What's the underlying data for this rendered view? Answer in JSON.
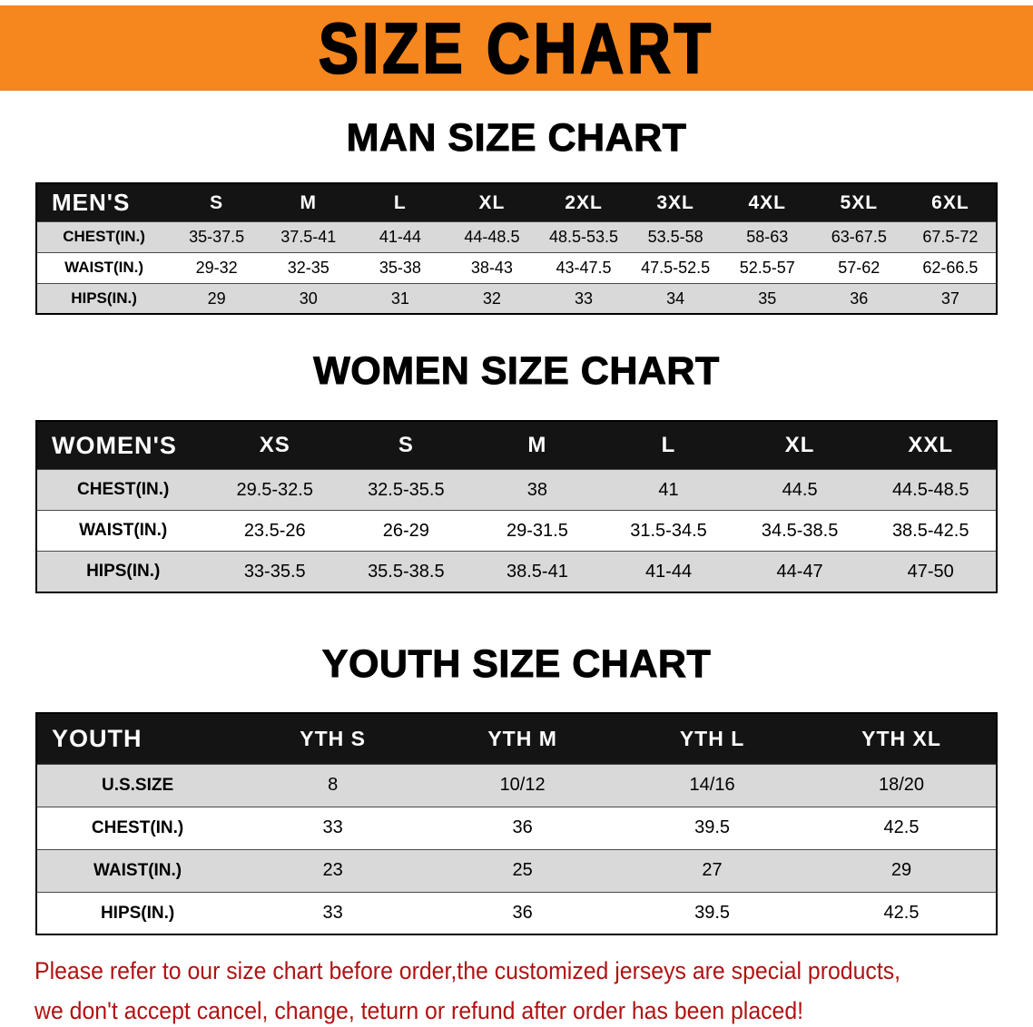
{
  "banner": {
    "title": "SIZE CHART"
  },
  "sections": [
    {
      "heading": "MAN SIZE CHART",
      "table": {
        "header": [
          "MEN'S",
          "S",
          "M",
          "L",
          "XL",
          "2XL",
          "3XL",
          "4XL",
          "5XL",
          "6XL"
        ],
        "rows": [
          [
            "CHEST(IN.)",
            "35-37.5",
            "37.5-41",
            "41-44",
            "44-48.5",
            "48.5-53.5",
            "53.5-58",
            "58-63",
            "63-67.5",
            "67.5-72"
          ],
          [
            "WAIST(IN.)",
            "29-32",
            "32-35",
            "35-38",
            "38-43",
            "43-47.5",
            "47.5-52.5",
            "52.5-57",
            "57-62",
            "62-66.5"
          ],
          [
            "HIPS(IN.)",
            "29",
            "30",
            "31",
            "32",
            "33",
            "34",
            "35",
            "36",
            "37"
          ]
        ]
      }
    },
    {
      "heading": "WOMEN SIZE CHART",
      "table": {
        "header": [
          "WOMEN'S",
          "XS",
          "S",
          "M",
          "L",
          "XL",
          "XXL"
        ],
        "rows": [
          [
            "CHEST(IN.)",
            "29.5-32.5",
            "32.5-35.5",
            "38",
            "41",
            "44.5",
            "44.5-48.5"
          ],
          [
            "WAIST(IN.)",
            "23.5-26",
            "26-29",
            "29-31.5",
            "31.5-34.5",
            "34.5-38.5",
            "38.5-42.5"
          ],
          [
            "HIPS(IN.)",
            "33-35.5",
            "35.5-38.5",
            "38.5-41",
            "41-44",
            "44-47",
            "47-50"
          ]
        ]
      }
    },
    {
      "heading": "YOUTH SIZE CHART",
      "table": {
        "header": [
          "YOUTH",
          "YTH S",
          "YTH M",
          "YTH L",
          "YTH XL"
        ],
        "rows": [
          [
            "U.S.SIZE",
            "8",
            "10/12",
            "14/16",
            "18/20"
          ],
          [
            "CHEST(IN.)",
            "33",
            "36",
            "39.5",
            "42.5"
          ],
          [
            "WAIST(IN.)",
            "23",
            "25",
            "27",
            "29"
          ],
          [
            "HIPS(IN.)",
            "33",
            "36",
            "39.5",
            "42.5"
          ]
        ]
      }
    }
  ],
  "footer": {
    "line1": "Please refer to our size chart before order,the customized jerseys are special products,",
    "line2": "we don't accept cancel, change, teturn or refund after order has been placed!"
  },
  "colors": {
    "banner_bg": "#f6861e",
    "header_bg": "#141414",
    "row_alt_bg": "#d9d9d9",
    "footer_text": "#b11212"
  }
}
